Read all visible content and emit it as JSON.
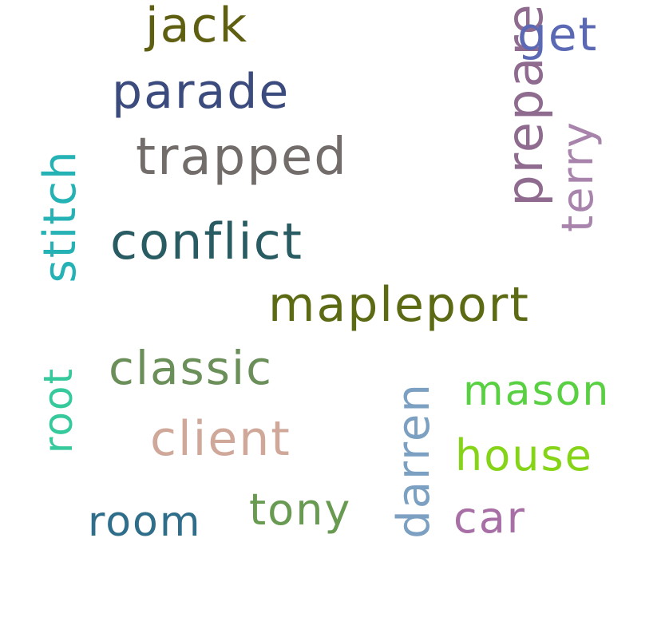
{
  "words": {
    "jack": {
      "text": "jack",
      "color": "#5f5f12"
    },
    "parade": {
      "text": "parade",
      "color": "#3b4b7e"
    },
    "trapped": {
      "text": "trapped",
      "color": "#726c6b"
    },
    "stitch": {
      "text": "stitch",
      "color": "#25b2b4"
    },
    "conflict": {
      "text": "conflict",
      "color": "#285c62"
    },
    "mapleport": {
      "text": "mapleport",
      "color": "#5d6a14"
    },
    "root": {
      "text": "root",
      "color": "#36c99b"
    },
    "classic": {
      "text": "classic",
      "color": "#6a8f58"
    },
    "client": {
      "text": "client",
      "color": "#d0a89a"
    },
    "room": {
      "text": "room",
      "color": "#2f6e8a"
    },
    "tony": {
      "text": "tony",
      "color": "#689a52"
    },
    "darren": {
      "text": "darren",
      "color": "#7ca0c1"
    },
    "prepare": {
      "text": "prepare",
      "color": "#8e6b8f"
    },
    "get": {
      "text": "get",
      "color": "#5b69b4"
    },
    "terry": {
      "text": "terry",
      "color": "#a884ad"
    },
    "mason": {
      "text": "mason",
      "color": "#58d041"
    },
    "house": {
      "text": "house",
      "color": "#86d418"
    },
    "car": {
      "text": "car",
      "color": "#a86ea6"
    }
  }
}
